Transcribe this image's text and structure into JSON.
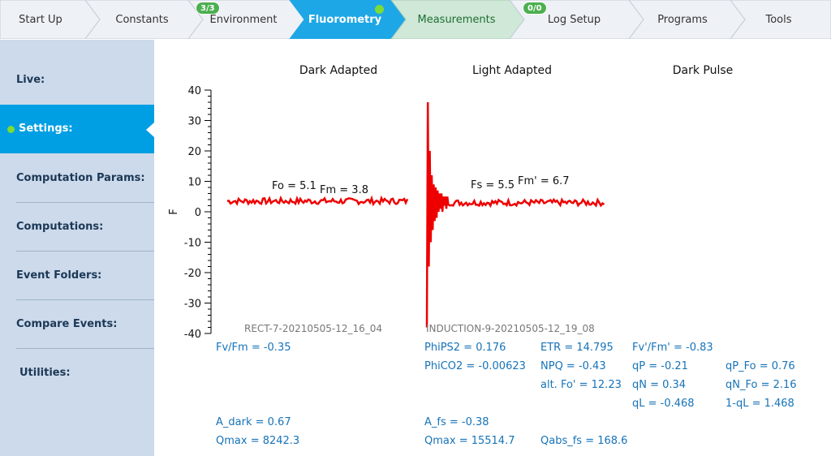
{
  "nav": {
    "tabs": [
      {
        "label": "Start Up"
      },
      {
        "label": "Constants"
      },
      {
        "label": "Environment",
        "badge": "3/3"
      },
      {
        "label": "Fluorometry",
        "active": true
      },
      {
        "label": "Measurements"
      },
      {
        "label": "Log Setup",
        "badge": "0/0"
      },
      {
        "label": "Programs"
      },
      {
        "label": "Tools"
      }
    ],
    "colors": {
      "active": "#1ea7e6",
      "measurements": "#cfe8d7",
      "default": "#eef1f6",
      "badge": "#4caf50",
      "status_dot": "#7cdb36"
    }
  },
  "sidebar": {
    "items": [
      {
        "label": "Live:"
      },
      {
        "label": "Settings:",
        "selected": true
      },
      {
        "label": "Computation Params:"
      },
      {
        "label": "Computations:"
      },
      {
        "label": "Event Folders:"
      },
      {
        "label": "Compare Events:"
      },
      {
        "label": "Utilities:"
      }
    ]
  },
  "chart": {
    "panel_titles": [
      "Dark Adapted",
      "Light Adapted",
      "Dark Pulse"
    ],
    "ylabel": "F",
    "y_ticks": [
      "40",
      "30",
      "20",
      "10",
      "0",
      "-10",
      "-20",
      "-30",
      "-40"
    ],
    "annotations": {
      "fo": "Fo = 5.1",
      "fm": "Fm = 3.8",
      "fs": "Fs = 5.5",
      "fm_prime": "Fm' = 6.7"
    },
    "event_labels": {
      "dark": "RECT-7-20210505-12_16_04",
      "light": "INDUCTION-9-20210505-12_19_08"
    }
  },
  "chart_data": {
    "type": "line",
    "ylim": [
      -40,
      40
    ],
    "ylabel": "F",
    "color": "#ee0000",
    "series": [
      {
        "panel": "Dark Adapted",
        "approx_level": 3.5,
        "noise": 1.0
      },
      {
        "panel": "Light Adapted",
        "approx_level": 3.0,
        "noise": 1.0,
        "initial_spike_range": [
          -38,
          36
        ]
      }
    ]
  },
  "results": {
    "fv_fm": "Fv/Fm = -0.35",
    "a_dark": "A_dark = 0.67",
    "qmax_dark": "Qmax = 8242.3",
    "phips2": "PhiPS2 = 0.176",
    "phico2": "PhiCO2 = -0.00623",
    "a_fs": "A_fs = -0.38",
    "qmax_light": "Qmax = 15514.7",
    "etr": "ETR = 14.795",
    "npq": "NPQ = -0.43",
    "alt_fo": "alt. Fo' = 12.23",
    "qabs_fs": "Qabs_fs = 168.6",
    "fv_fm_prime": "Fv'/Fm' = -0.83",
    "qp": "qP = -0.21",
    "qn": "qN = 0.34",
    "ql": "qL = -0.468",
    "qp_fo": "qP_Fo = 0.76",
    "qn_fo": "qN_Fo = 2.16",
    "one_ql": "1-qL = 1.468"
  }
}
